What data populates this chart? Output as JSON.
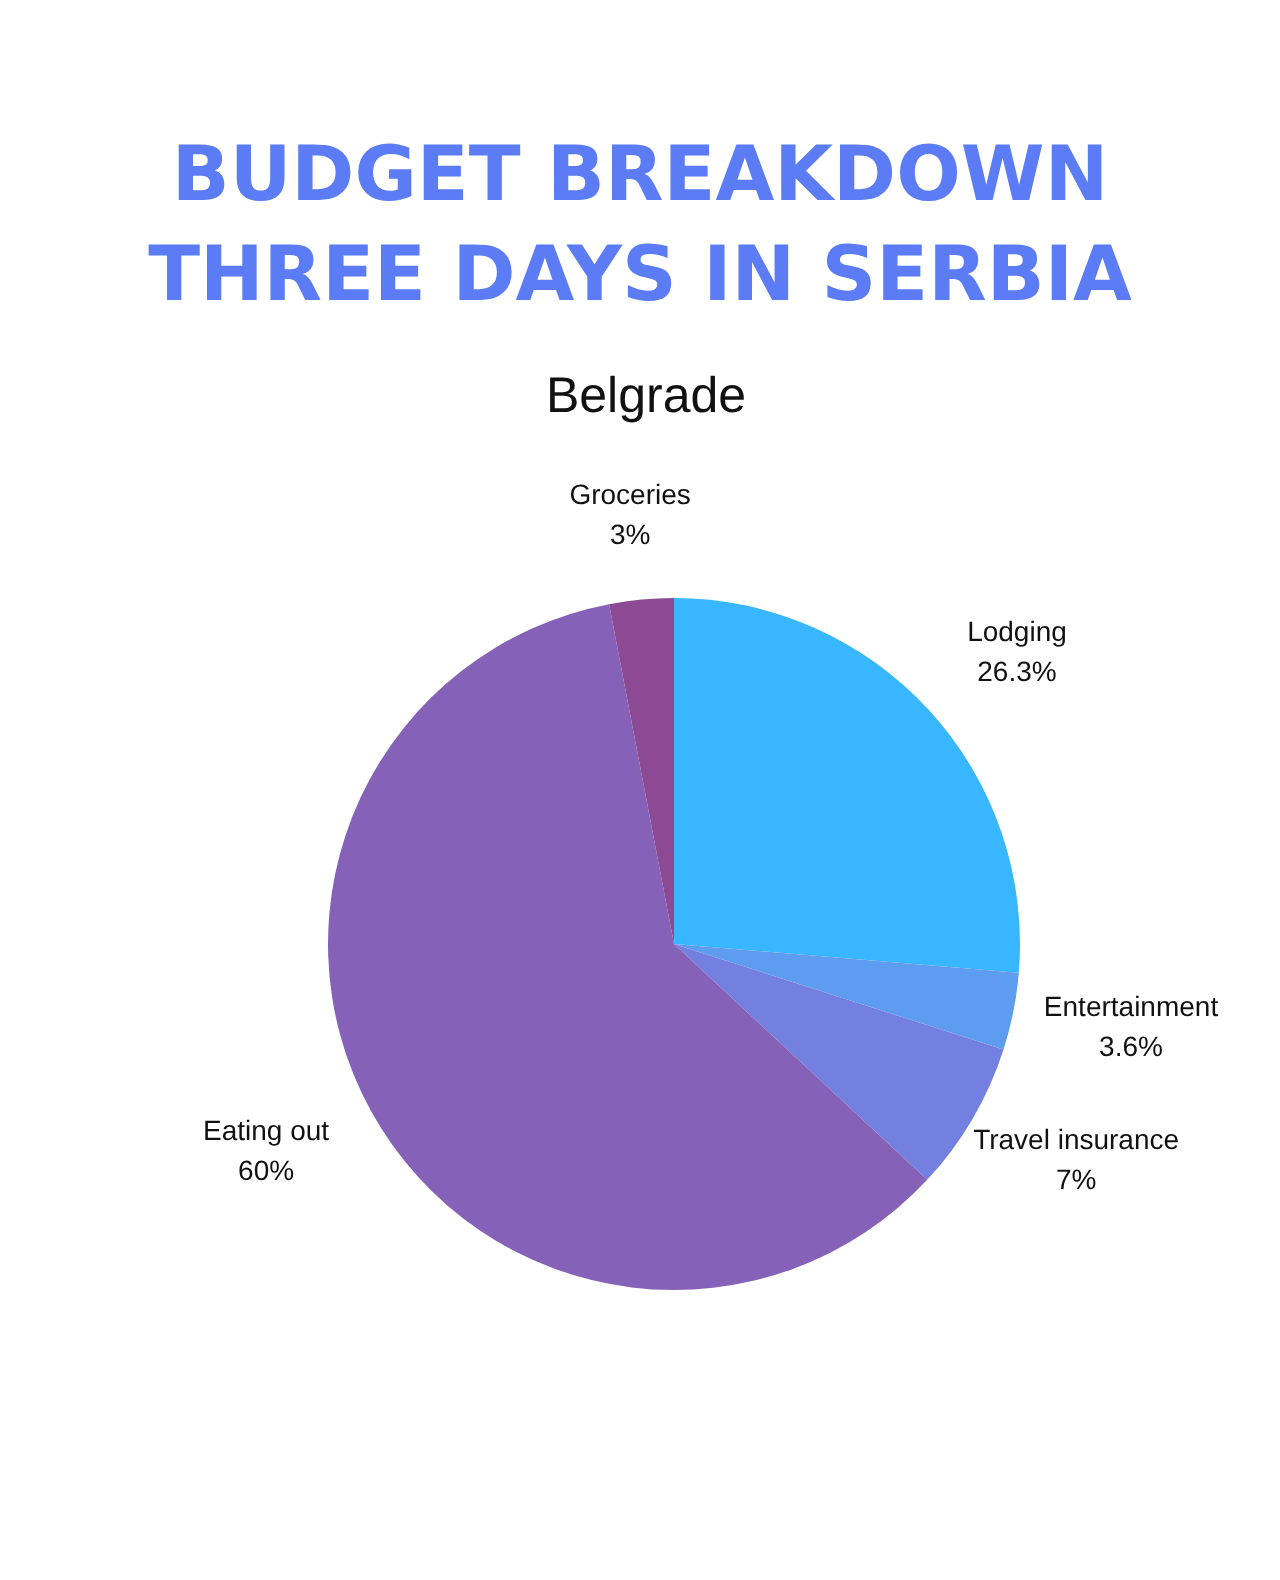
{
  "chart_data": {
    "type": "pie",
    "title": "BUDGET BREAKDOWN\nTHREE DAYS IN SERBIA",
    "subtitle": "Belgrade",
    "categories": [
      "Lodging",
      "Entertainment",
      "Travel insurance",
      "Eating out",
      "Groceries"
    ],
    "values": [
      26.3,
      3.6,
      7,
      60,
      3
    ],
    "colors": [
      "#38b6ff",
      "#5e9cf0",
      "#7480e0",
      "#8561b8",
      "#8c4a94"
    ],
    "value_labels": [
      "26.3%",
      "3.6%",
      "7%",
      "60%",
      "3%"
    ],
    "legend": false
  }
}
